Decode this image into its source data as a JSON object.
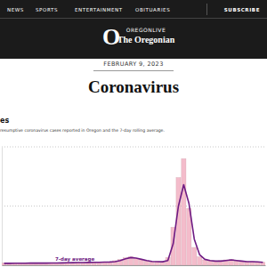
{
  "page": {
    "nav": [
      "NEWS",
      "SPORTS",
      "ENTERTAINMENT",
      "OBITUARIES"
    ],
    "subscribe": "SUBSCRIBE",
    "logo": {
      "mark": "O",
      "line1": "OREGONLIVE",
      "line2": "The Oregonian"
    },
    "date": "FEBRUARY 9, 2023",
    "title": "Coronavirus"
  },
  "chart_data": {
    "type": "bar",
    "title": "es",
    "subtitle": "resumptive coronavirus cases reported in Oregon and the 7-day rolling average.",
    "categories": [
      null,
      null,
      null,
      null,
      null,
      null,
      null,
      null,
      null,
      null,
      null,
      null,
      null,
      null,
      null,
      null,
      null,
      null,
      null,
      null,
      null,
      null,
      null,
      null,
      null,
      null,
      null,
      null,
      null,
      null,
      null,
      null,
      null,
      null,
      null,
      null,
      null,
      null,
      null,
      null,
      null,
      null,
      null,
      null,
      null,
      null,
      null,
      null,
      null,
      null
    ],
    "series": [
      {
        "type": "bar",
        "color": "#f4bccb",
        "values": [
          180,
          140,
          200,
          160,
          150,
          210,
          150,
          190,
          170,
          180,
          210,
          180,
          230,
          200,
          240,
          220,
          250,
          230,
          270,
          250,
          290,
          380,
          480,
          620,
          700,
          560,
          470,
          380,
          300,
          310,
          280,
          650,
          3200,
          7400,
          9000,
          4800,
          1500,
          700,
          450,
          380,
          330,
          380,
          450,
          480,
          370,
          330,
          290,
          310,
          260,
          240
        ]
      },
      {
        "name": "7-day average",
        "type": "line",
        "color": "#6e1b83",
        "values": [
          160,
          160,
          165,
          170,
          170,
          175,
          175,
          180,
          180,
          185,
          190,
          200,
          205,
          215,
          220,
          230,
          235,
          245,
          250,
          260,
          270,
          300,
          400,
          550,
          650,
          600,
          500,
          400,
          320,
          300,
          290,
          400,
          1800,
          5000,
          6800,
          5200,
          2200,
          900,
          500,
          400,
          350,
          350,
          400,
          450,
          400,
          350,
          300,
          300,
          280,
          250
        ]
      }
    ],
    "ylim": [
      0,
      10000
    ],
    "yticks": [
      0,
      5000,
      10000
    ],
    "grid": true,
    "tick_labels": false
  }
}
